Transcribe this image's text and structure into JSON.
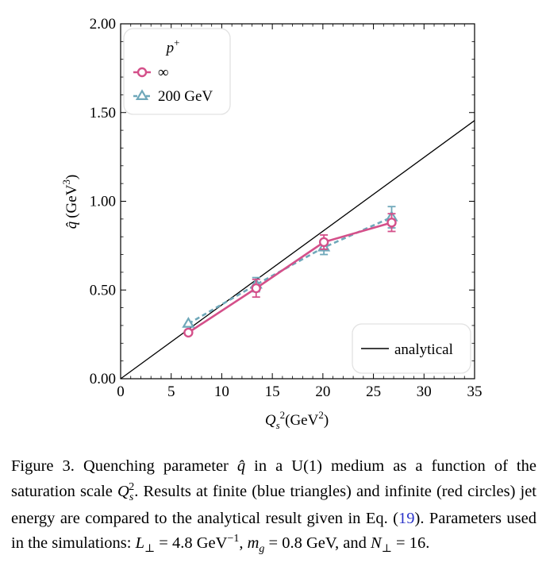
{
  "chart_data": {
    "type": "line",
    "xlabel_main": "Q",
    "xlabel_sub": "s",
    "xlabel_sup": "2",
    "xlabel_unit": "(GeV",
    "xlabel_unit_sup": "2",
    "xlabel_close": ")",
    "ylabel_hat": "q̂",
    "ylabel_unit": "(GeV",
    "ylabel_unit_sup": "3",
    "ylabel_close": ")",
    "xlim": [
      0,
      35
    ],
    "ylim": [
      0,
      2.0
    ],
    "xticks": [
      0,
      5,
      10,
      15,
      20,
      25,
      30,
      35
    ],
    "xtick_labels": [
      "0",
      "5",
      "10",
      "15",
      "20",
      "25",
      "30",
      "35"
    ],
    "yticks": [
      0,
      0.5,
      1.0,
      1.5,
      2.0
    ],
    "ytick_labels": [
      "0.00",
      "0.50",
      "1.00",
      "1.50",
      "2.00"
    ],
    "legend_title": "p",
    "legend_title_sup": "+",
    "series": [
      {
        "name": "∞",
        "marker": "circle",
        "line": "solid",
        "color": "#d4508a",
        "x": [
          6.7,
          13.4,
          20.1,
          26.8
        ],
        "y": [
          0.26,
          0.51,
          0.77,
          0.88
        ],
        "err": [
          0.0,
          0.05,
          0.04,
          0.05
        ]
      },
      {
        "name": "200 GeV",
        "marker": "triangle",
        "line": "dashed",
        "color": "#6fa8ba",
        "x": [
          6.7,
          13.4,
          20.1,
          26.8
        ],
        "y": [
          0.31,
          0.53,
          0.74,
          0.91
        ],
        "err": [
          0.0,
          0.04,
          0.04,
          0.06
        ]
      }
    ],
    "analytical": {
      "name": "analytical",
      "color": "#000000",
      "x": [
        0,
        35
      ],
      "y": [
        0,
        1.455
      ]
    },
    "legend_position_1": "upper-left",
    "legend_position_2": "lower-right",
    "grid": false
  },
  "caption": {
    "p1": "Figure 3.    Quenching parameter ",
    "p2": " in a U(1) medium as a function of the saturation scale ",
    "p3": ". Results at finite (blue triangles) and infinite (red circles) jet energy are compared to the analytical result given in Eq. (",
    "ref": "19",
    "p4": "). Parameters used in the simulations: ",
    "m1": "L",
    "m1b": "⊥",
    "m1c": " = 4.8 GeV",
    "m1d": "−1",
    "p5": ", ",
    "m2": "m",
    "m2b": "g",
    "m2c": " = 0.8 GeV, and ",
    "m3": "N",
    "m3b": "⊥",
    "m3c": " = 16.",
    "qhat": "q̂",
    "qs": "Q",
    "qs_sub": "s",
    "qs_sup": "2"
  }
}
